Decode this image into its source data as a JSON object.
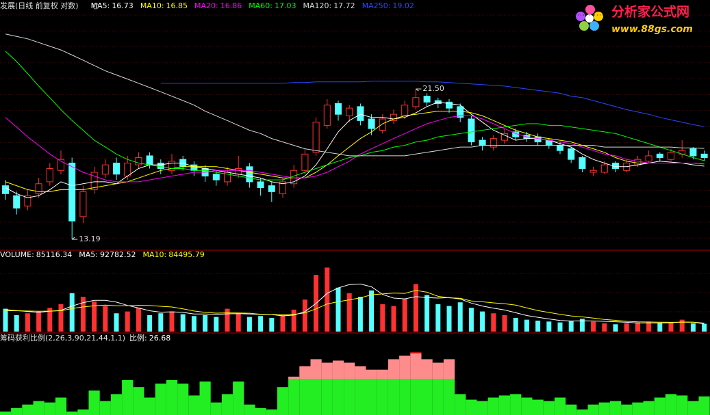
{
  "logo": {
    "title": "分析家公式网",
    "url": "www.88gs.com"
  },
  "chart_data": [
    {
      "type": "candlestick",
      "title": "发展(日线 前复权 对数)",
      "log_scale": true,
      "ylim": [
        12.76,
        28.7
      ],
      "up_color": "#ff3232",
      "down_color": "#54ffff",
      "open": [
        15.7,
        15.2,
        14.7,
        15.3,
        15.9,
        16.5,
        16.9,
        14.2,
        15.5,
        16.3,
        16.9,
        16.2,
        16.8,
        17.3,
        16.9,
        16.5,
        17.1,
        16.8,
        16.6,
        16.3,
        15.9,
        16.3,
        16.7,
        15.9,
        15.7,
        15.3,
        15.8,
        16.5,
        17.5,
        19.1,
        20.5,
        19.7,
        20.3,
        19.5,
        18.8,
        19.4,
        19.7,
        20.3,
        21.0,
        20.7,
        20.6,
        20.3,
        19.5,
        18.2,
        17.8,
        18.2,
        18.7,
        18.5,
        18.4,
        18.2,
        17.9,
        17.7,
        17.2,
        16.4,
        16.4,
        16.9,
        16.5,
        16.8,
        17.0,
        17.4,
        17.1,
        17.4,
        17.7,
        17.4
      ],
      "high": [
        16.0,
        15.4,
        15.5,
        16.1,
        16.9,
        17.6,
        17.2,
        15.7,
        16.7,
        17.1,
        17.2,
        17.3,
        17.5,
        17.5,
        17.1,
        17.4,
        17.3,
        17.0,
        16.8,
        16.5,
        16.7,
        17.3,
        16.9,
        16.1,
        15.9,
        16.1,
        16.8,
        17.7,
        19.6,
        20.8,
        20.7,
        20.4,
        20.5,
        19.8,
        19.8,
        20.1,
        20.7,
        21.5,
        21.2,
        20.9,
        20.8,
        20.5,
        19.7,
        18.4,
        18.5,
        18.9,
        18.9,
        18.7,
        18.6,
        18.3,
        18.1,
        17.8,
        17.3,
        16.7,
        17.0,
        17.0,
        17.1,
        17.3,
        17.6,
        17.5,
        17.7,
        18.2,
        17.8,
        17.6
      ],
      "low": [
        15.0,
        14.3,
        14.5,
        15.1,
        15.7,
        16.3,
        13.19,
        13.9,
        15.3,
        16.1,
        16.0,
        16.0,
        16.6,
        16.6,
        16.3,
        16.3,
        16.5,
        16.2,
        15.9,
        15.7,
        15.7,
        16.1,
        15.6,
        15.2,
        14.9,
        15.1,
        15.6,
        16.3,
        17.3,
        18.9,
        19.4,
        19.3,
        19.1,
        18.5,
        18.6,
        19.2,
        19.5,
        20.1,
        20.3,
        20.2,
        19.9,
        19.3,
        17.9,
        17.6,
        17.6,
        18.0,
        18.2,
        18.1,
        17.9,
        17.7,
        17.4,
        16.9,
        16.4,
        16.2,
        16.3,
        16.4,
        16.4,
        16.7,
        16.9,
        17.0,
        17.0,
        17.2,
        17.1,
        17.0
      ],
      "close": [
        15.3,
        14.6,
        15.2,
        15.8,
        16.6,
        17.1,
        14.0,
        15.4,
        16.4,
        16.8,
        16.3,
        16.9,
        17.2,
        16.8,
        16.6,
        17.0,
        16.7,
        16.5,
        16.2,
        16.0,
        16.4,
        16.6,
        15.9,
        15.6,
        15.4,
        15.9,
        16.5,
        17.4,
        19.3,
        20.4,
        19.8,
        20.2,
        19.4,
        18.9,
        19.5,
        19.8,
        20.4,
        20.9,
        20.6,
        20.5,
        20.2,
        19.6,
        18.1,
        17.9,
        18.3,
        18.6,
        18.4,
        18.3,
        18.1,
        17.9,
        17.6,
        17.1,
        16.6,
        16.5,
        16.8,
        16.6,
        16.9,
        17.1,
        17.3,
        17.2,
        17.5,
        17.6,
        17.3,
        17.2
      ],
      "series": [
        {
          "name": "MA5:",
          "color": "#ffffff",
          "values": [
            15.6,
            15.3,
            15.1,
            15.2,
            15.5,
            15.9,
            15.7,
            15.8,
            15.9,
            15.9,
            15.8,
            16.2,
            16.6,
            16.8,
            16.8,
            16.9,
            16.9,
            16.7,
            16.6,
            16.5,
            16.4,
            16.3,
            16.2,
            16.1,
            15.9,
            15.8,
            15.9,
            16.2,
            16.8,
            17.7,
            18.7,
            19.4,
            19.8,
            19.6,
            19.6,
            19.5,
            19.6,
            19.9,
            20.3,
            20.6,
            20.5,
            20.4,
            19.8,
            19.3,
            18.8,
            18.5,
            18.2,
            18.3,
            18.3,
            18.2,
            18.0,
            17.8,
            17.4,
            17.1,
            16.9,
            16.7,
            16.7,
            16.8,
            16.9,
            17.0,
            16.95,
            16.9,
            16.8,
            16.73
          ]
        },
        {
          "name": "MA10:",
          "color": "#ffff00",
          "values": [
            15.9,
            15.7,
            15.5,
            15.4,
            15.4,
            15.5,
            15.5,
            15.5,
            15.6,
            15.7,
            15.8,
            15.9,
            16.1,
            16.3,
            16.5,
            16.6,
            16.7,
            16.7,
            16.7,
            16.7,
            16.6,
            16.5,
            16.4,
            16.3,
            16.2,
            16.1,
            16.1,
            16.1,
            16.4,
            16.8,
            17.3,
            17.8,
            18.3,
            18.7,
            19.2,
            19.5,
            19.7,
            19.8,
            19.9,
            20.0,
            20.0,
            20.0,
            19.9,
            19.7,
            19.4,
            19.1,
            18.8,
            18.6,
            18.4,
            18.3,
            18.2,
            18.1,
            17.9,
            17.7,
            17.5,
            17.2,
            17.0,
            16.9,
            16.9,
            16.9,
            16.9,
            16.9,
            16.9,
            16.85
          ]
        },
        {
          "name": "MA20:",
          "color": "#ff00ff",
          "values": [
            19.6,
            19.0,
            18.4,
            17.9,
            17.4,
            17.0,
            16.7,
            16.4,
            16.2,
            16.0,
            15.9,
            15.9,
            15.9,
            16.0,
            16.1,
            16.2,
            16.3,
            16.4,
            16.4,
            16.5,
            16.5,
            16.5,
            16.5,
            16.4,
            16.3,
            16.2,
            16.1,
            16.1,
            16.2,
            16.4,
            16.7,
            17.0,
            17.4,
            17.7,
            18.0,
            18.3,
            18.6,
            18.9,
            19.2,
            19.4,
            19.6,
            19.7,
            19.7,
            19.5,
            19.2,
            18.9,
            18.6,
            18.4,
            18.3,
            18.2,
            18.1,
            18.0,
            17.8,
            17.6,
            17.4,
            17.3,
            17.1,
            17.0,
            16.9,
            16.9,
            16.9,
            16.9,
            16.9,
            16.86
          ]
        },
        {
          "name": "MA60:",
          "color": "#00ff00",
          "values": [
            24.3,
            23.5,
            22.6,
            21.7,
            20.9,
            20.1,
            19.4,
            18.8,
            18.2,
            17.8,
            17.4,
            17.1,
            16.9,
            16.8,
            16.7,
            16.6,
            16.6,
            16.5,
            16.5,
            16.4,
            16.3,
            16.2,
            16.1,
            16.0,
            16.0,
            16.0,
            16.2,
            16.4,
            16.6,
            16.8,
            17.0,
            17.2,
            17.3,
            17.5,
            17.6,
            17.8,
            17.9,
            18.1,
            18.2,
            18.4,
            18.5,
            18.6,
            18.7,
            18.8,
            18.9,
            19.0,
            19.1,
            19.2,
            19.2,
            19.1,
            19.1,
            19.0,
            18.9,
            18.8,
            18.7,
            18.6,
            18.4,
            18.2,
            18.0,
            17.8,
            17.6,
            17.4,
            17.2,
            17.03
          ]
        },
        {
          "name": "MA120:",
          "color": "#d8d8d8",
          "values": [
            25.7,
            25.5,
            25.3,
            25.0,
            24.7,
            24.4,
            24.0,
            23.6,
            23.2,
            22.8,
            22.5,
            22.2,
            21.9,
            21.6,
            21.3,
            21.0,
            20.7,
            20.4,
            20.0,
            19.7,
            19.4,
            19.1,
            18.8,
            18.6,
            18.3,
            18.1,
            17.9,
            17.7,
            17.6,
            17.5,
            17.4,
            17.3,
            17.3,
            17.3,
            17.3,
            17.3,
            17.3,
            17.4,
            17.5,
            17.6,
            17.7,
            17.8,
            17.8,
            17.9,
            17.9,
            17.9,
            17.9,
            17.9,
            17.9,
            17.9,
            17.9,
            17.9,
            17.9,
            17.9,
            17.8,
            17.8,
            17.8,
            17.8,
            17.8,
            17.8,
            17.8,
            17.75,
            17.75,
            17.72
          ]
        },
        {
          "name": "MA250:",
          "color": "#2848ff",
          "values": [
            null,
            null,
            null,
            null,
            null,
            null,
            null,
            null,
            null,
            null,
            null,
            null,
            null,
            null,
            21.9,
            21.9,
            21.9,
            21.9,
            21.9,
            21.9,
            21.9,
            21.9,
            21.9,
            21.9,
            21.9,
            21.9,
            21.95,
            21.95,
            22.0,
            22.0,
            22.0,
            22.0,
            22.0,
            22.05,
            22.05,
            22.05,
            22.05,
            22.05,
            22.0,
            22.0,
            21.95,
            21.9,
            21.85,
            21.8,
            21.75,
            21.7,
            21.6,
            21.5,
            21.4,
            21.3,
            21.2,
            21.0,
            20.9,
            20.7,
            20.5,
            20.3,
            20.1,
            19.95,
            19.8,
            19.6,
            19.45,
            19.3,
            19.15,
            19.02
          ]
        }
      ],
      "annotations": [
        {
          "label": "21.50",
          "value": 21.5
        },
        {
          "label": "13.19",
          "value": 13.19
        }
      ]
    },
    {
      "type": "bar",
      "title": "VOLUME:",
      "ylim": [
        0,
        800000
      ],
      "color": "#ffffff",
      "values": [
        250000,
        180000,
        200000,
        220000,
        260000,
        300000,
        420000,
        380000,
        330000,
        280000,
        200000,
        220000,
        260000,
        180000,
        200000,
        220000,
        190000,
        170000,
        180000,
        160000,
        250000,
        200000,
        160000,
        170000,
        150000,
        180000,
        240000,
        350000,
        620000,
        700000,
        480000,
        420000,
        380000,
        450000,
        300000,
        280000,
        360000,
        520000,
        400000,
        300000,
        280000,
        320000,
        260000,
        220000,
        200000,
        180000,
        150000,
        130000,
        120000,
        110000,
        100000,
        120000,
        140000,
        110000,
        90000,
        80000,
        90000,
        100000,
        110000,
        90000,
        95000,
        130000,
        90000,
        85116.34
      ],
      "series": [
        {
          "name": "MA5:",
          "color": "#ffffff",
          "values": [
            240000,
            230000,
            220000,
            210000,
            222000,
            232000,
            280000,
            316000,
            342000,
            342000,
            322000,
            286000,
            258000,
            228000,
            212000,
            216000,
            210000,
            192000,
            192000,
            188000,
            194000,
            196000,
            192000,
            188000,
            186000,
            172000,
            180000,
            218000,
            308000,
            418000,
            478000,
            514000,
            520000,
            490000,
            406000,
            366000,
            358000,
            382000,
            372000,
            366000,
            372000,
            356000,
            312000,
            280000,
            256000,
            236000,
            206000,
            176000,
            156000,
            138000,
            122000,
            116000,
            118000,
            116000,
            112000,
            108000,
            102000,
            94000,
            94000,
            94000,
            97000,
            105000,
            103000,
            92782.52
          ]
        },
        {
          "name": "MA10:",
          "color": "#ffff00",
          "values": [
            230000,
            228000,
            225000,
            222000,
            224000,
            228000,
            252000,
            270000,
            282000,
            290000,
            282000,
            283000,
            287000,
            285000,
            277000,
            269000,
            248000,
            225000,
            210000,
            202000,
            205000,
            203000,
            201000,
            190000,
            187000,
            183000,
            188000,
            205000,
            248000,
            302000,
            327000,
            347000,
            369000,
            403000,
            412000,
            422000,
            418000,
            451000,
            431000,
            386000,
            369000,
            364000,
            335000,
            326000,
            314000,
            304000,
            289000,
            259000,
            230000,
            209000,
            189000,
            171000,
            161000,
            147000,
            133000,
            123000,
            112000,
            106000,
            105000,
            103000,
            102000,
            103000,
            103000,
            84495.79
          ]
        }
      ]
    },
    {
      "type": "area",
      "title": "筹码获利比例(2,26,3,90,21,44,1,1)",
      "ylim": [
        0,
        100
      ],
      "series": [
        {
          "name": "比例:",
          "color": "#ffffff",
          "values": [
            5,
            10,
            15,
            20,
            18,
            25,
            5,
            8,
            35,
            20,
            30,
            50,
            40,
            25,
            45,
            50,
            45,
            28,
            48,
            18,
            30,
            48,
            15,
            10,
            8,
            40,
            55,
            70,
            80,
            75,
            78,
            75,
            70,
            65,
            65,
            80,
            85,
            90,
            80,
            75,
            80,
            30,
            22,
            20,
            25,
            28,
            30,
            25,
            22,
            20,
            25,
            15,
            8,
            15,
            18,
            20,
            15,
            18,
            20,
            25,
            30,
            28,
            20,
            26.68
          ]
        }
      ]
    }
  ]
}
